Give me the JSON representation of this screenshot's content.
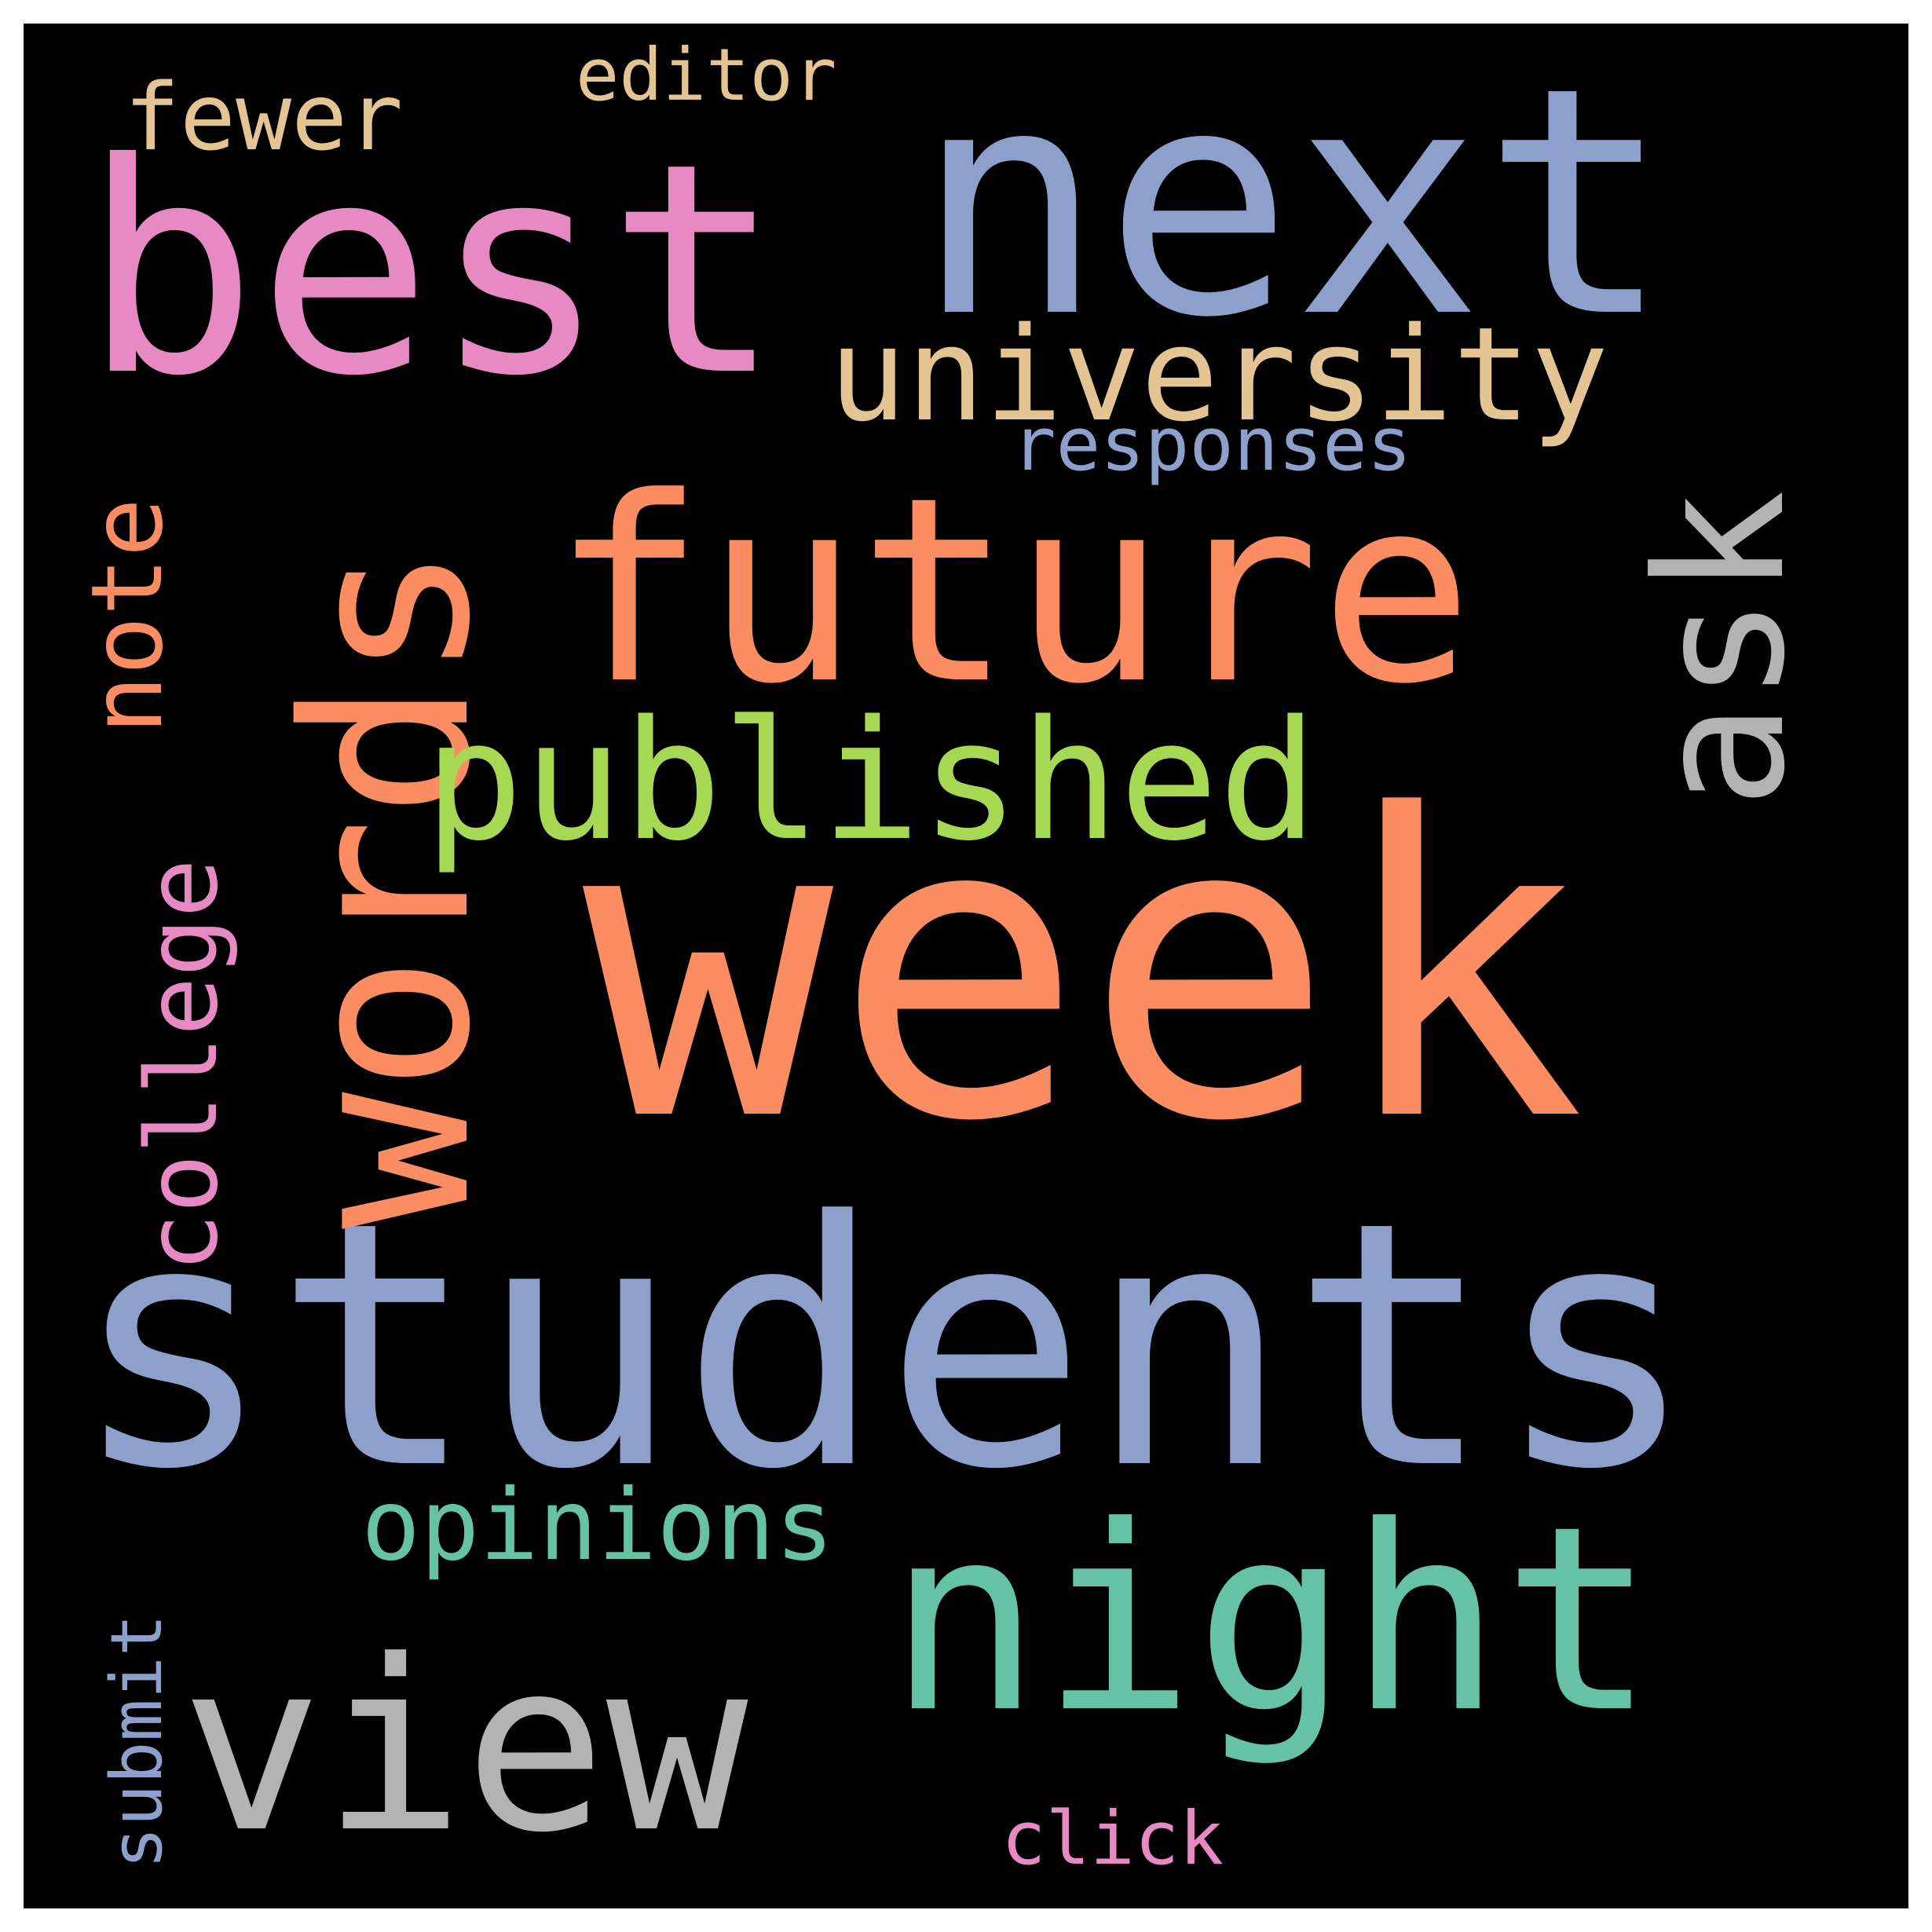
{
  "background": "#000000",
  "words": {
    "week": {
      "text": "week",
      "color": "#fc8d62",
      "orientation": "horizontal"
    },
    "students": {
      "text": "students",
      "color": "#8da0cb",
      "orientation": "horizontal"
    },
    "next": {
      "text": "next",
      "color": "#8da0cb",
      "orientation": "horizontal"
    },
    "best": {
      "text": "best",
      "color": "#e78ac3",
      "orientation": "horizontal"
    },
    "future": {
      "text": "future",
      "color": "#fc8d62",
      "orientation": "horizontal"
    },
    "words": {
      "text": "words",
      "color": "#fc8d62",
      "orientation": "vertical"
    },
    "night": {
      "text": "night",
      "color": "#66c2a5",
      "orientation": "horizontal"
    },
    "view": {
      "text": "view",
      "color": "#b3b3b3",
      "orientation": "horizontal"
    },
    "ask": {
      "text": "ask",
      "color": "#b3b3b3",
      "orientation": "vertical"
    },
    "published": {
      "text": "published",
      "color": "#a6d854",
      "orientation": "horizontal"
    },
    "university": {
      "text": "university",
      "color": "#e5c494",
      "orientation": "horizontal"
    },
    "college": {
      "text": "college",
      "color": "#e78ac3",
      "orientation": "vertical"
    },
    "note": {
      "text": "note",
      "color": "#fc8d62",
      "orientation": "vertical"
    },
    "opinions": {
      "text": "opinions",
      "color": "#66c2a5",
      "orientation": "horizontal"
    },
    "fewer": {
      "text": "fewer",
      "color": "#e5c494",
      "orientation": "horizontal"
    },
    "responses": {
      "text": "responses",
      "color": "#8da0cb",
      "orientation": "horizontal"
    },
    "editor": {
      "text": "editor",
      "color": "#e5c494",
      "orientation": "horizontal"
    },
    "submit": {
      "text": "submit",
      "color": "#8da0cb",
      "orientation": "vertical"
    },
    "click": {
      "text": "click",
      "color": "#e78ac3",
      "orientation": "horizontal"
    }
  }
}
